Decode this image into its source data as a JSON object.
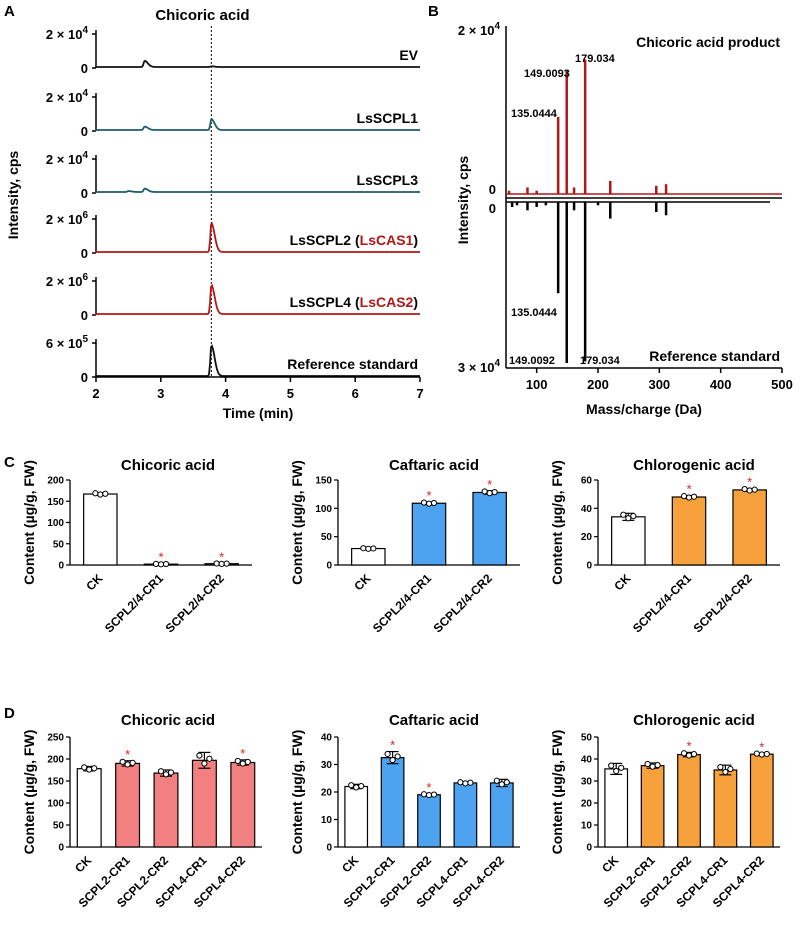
{
  "panels": {
    "A": "A",
    "B": "B",
    "C": "C",
    "D": "D"
  },
  "colors": {
    "red": "#b01818",
    "teal": "#1e5b6b",
    "black": "#111111",
    "white_bar": "#ffffff",
    "blue_bar": "#4da3ef",
    "orange_bar": "#f7a13c",
    "pink_bar": "#f28080"
  },
  "chart_data": [
    {
      "id": "A",
      "type": "line",
      "title": "Chicoric acid",
      "xlabel": "Time (min)",
      "ylabel": "Intensity, cps",
      "xlim": [
        2,
        7
      ],
      "xticks": [
        "2",
        "3",
        "4",
        "5",
        "6",
        "7"
      ],
      "marker_time": 3.78,
      "traces": [
        {
          "name": "EV",
          "ymax_label": "2 × 10",
          "ymax_exp": "4",
          "zero": "0",
          "color": "black",
          "peaks": [
            {
              "t": 2.75,
              "h": 0.18
            },
            {
              "t": 3.78,
              "h": 0.02
            }
          ]
        },
        {
          "name": "LsSCPL1",
          "ymax_label": "2 × 10",
          "ymax_exp": "4",
          "zero": "0",
          "color": "teal",
          "peaks": [
            {
              "t": 2.75,
              "h": 0.1
            },
            {
              "t": 3.78,
              "h": 0.32
            }
          ]
        },
        {
          "name": "LsSCPL3",
          "ymax_label": "2 × 10",
          "ymax_exp": "4",
          "zero": "0",
          "color": "teal",
          "peaks": [
            {
              "t": 2.75,
              "h": 0.1
            },
            {
              "t": 2.5,
              "h": 0.03
            }
          ]
        },
        {
          "name": "LsSCPL2 (",
          "name_red": "LsCAS1",
          "name_end": ")",
          "ymax_label": "2 × 10",
          "ymax_exp": "6",
          "zero": "0",
          "color": "red",
          "peaks": [
            {
              "t": 3.78,
              "h": 0.85
            }
          ]
        },
        {
          "name": "LsSCPL4 (",
          "name_red": "LsCAS2",
          "name_end": ")",
          "ymax_label": "2 × 10",
          "ymax_exp": "6",
          "zero": "0",
          "color": "red",
          "peaks": [
            {
              "t": 3.78,
              "h": 0.85
            }
          ]
        },
        {
          "name": "Reference standard",
          "ymax_label": "6 × 10",
          "ymax_exp": "5",
          "zero": "0",
          "color": "black",
          "peaks": [
            {
              "t": 3.78,
              "h": 0.9
            }
          ]
        }
      ]
    },
    {
      "id": "B",
      "type": "bar",
      "xlabel": "Mass/charge (Da)",
      "ylabel": "Intensity, cps",
      "xlim": [
        50,
        500
      ],
      "xticks": [
        "100",
        "200",
        "300",
        "400",
        "500"
      ],
      "top_label": "Chicoric acid product",
      "bottom_label": "Reference standard",
      "top_max": "2 × 10",
      "top_max_exp": "4",
      "top_zero": "0",
      "bottom_zero": "0",
      "bottom_max": "3 × 10",
      "bottom_max_exp": "4",
      "top_peaks": [
        [
          55,
          0.02
        ],
        [
          85,
          0.04
        ],
        [
          100,
          0.02
        ],
        [
          135.0444,
          0.47
        ],
        [
          149.0093,
          0.75
        ],
        [
          161,
          0.04
        ],
        [
          179.034,
          0.82
        ],
        [
          220,
          0.08
        ],
        [
          295,
          0.05
        ],
        [
          311,
          0.06
        ]
      ],
      "bottom_peaks": [
        [
          60,
          0.03
        ],
        [
          68,
          0.02
        ],
        [
          85,
          0.05
        ],
        [
          100,
          0.03
        ],
        [
          115,
          0.02
        ],
        [
          135.0444,
          0.55
        ],
        [
          149.0092,
          0.97
        ],
        [
          161,
          0.05
        ],
        [
          179.034,
          0.96
        ],
        [
          200,
          0.02
        ],
        [
          220,
          0.1
        ],
        [
          295,
          0.06
        ],
        [
          311,
          0.08
        ]
      ],
      "labels_top": [
        "149.0093",
        "179.034",
        "135.0444"
      ],
      "labels_bottom": [
        "135.0444",
        "149.0092",
        "179.034"
      ]
    },
    {
      "id": "C1",
      "type": "bar",
      "title": "Chicoric acid",
      "ylabel": "Content (µg/g, FW)",
      "ylim": [
        0,
        200
      ],
      "yticks": [
        "0",
        "50",
        "100",
        "150",
        "200"
      ],
      "categories": [
        "CK",
        "SCPL2/4-CR1",
        "SCPL2/4-CR2"
      ],
      "values": [
        167,
        2,
        3
      ],
      "err": [
        3,
        1,
        1
      ],
      "colors": [
        "white_bar",
        "blue_bar",
        "blue_bar"
      ],
      "star": [
        false,
        true,
        true
      ]
    },
    {
      "id": "C2",
      "type": "bar",
      "title": "Caftaric acid",
      "ylabel": "Content (µg/g, FW)",
      "ylim": [
        0,
        150
      ],
      "yticks": [
        "0",
        "50",
        "100",
        "150"
      ],
      "categories": [
        "CK",
        "SCPL2/4-CR1",
        "SCPL2/4-CR2"
      ],
      "values": [
        29,
        109,
        128
      ],
      "err": [
        1,
        2,
        3
      ],
      "colors": [
        "white_bar",
        "blue_bar",
        "blue_bar"
      ],
      "star": [
        false,
        true,
        true
      ]
    },
    {
      "id": "C3",
      "type": "bar",
      "title": "Chlorogenic acid",
      "ylabel": "Content (µg/g, FW)",
      "ylim": [
        0,
        60
      ],
      "yticks": [
        "0",
        "20",
        "40",
        "60"
      ],
      "categories": [
        "CK",
        "SCPL2/4-CR1",
        "SCPL2/4-CR2"
      ],
      "values": [
        34,
        48,
        53
      ],
      "err": [
        2.5,
        1,
        1
      ],
      "colors": [
        "white_bar",
        "orange_bar",
        "orange_bar"
      ],
      "star": [
        false,
        true,
        true
      ]
    },
    {
      "id": "D1",
      "type": "bar",
      "title": "Chicoric acid",
      "ylabel": "Content (µg/g, FW)",
      "ylim": [
        0,
        250
      ],
      "yticks": [
        "0",
        "50",
        "100",
        "150",
        "200",
        "250"
      ],
      "categories": [
        "CK",
        "SCPL2-CR1",
        "SCPL2-CR2",
        "SCPL4-CR1",
        "SCPL4-CR2"
      ],
      "values": [
        178,
        190,
        168,
        197,
        192
      ],
      "err": [
        5,
        6,
        7,
        18,
        6
      ],
      "colors": [
        "white_bar",
        "pink_bar",
        "pink_bar",
        "pink_bar",
        "pink_bar"
      ],
      "star": [
        false,
        true,
        false,
        false,
        true
      ]
    },
    {
      "id": "D2",
      "type": "bar",
      "title": "Caftaric acid",
      "ylabel": "Content (µg/g, FW)",
      "ylim": [
        0,
        40
      ],
      "yticks": [
        "0",
        "10",
        "20",
        "30",
        "40"
      ],
      "categories": [
        "CK",
        "SCPL2-CR1",
        "SCPL2-CR2",
        "SCPL4-CR1",
        "SCPL4-CR2"
      ],
      "values": [
        22,
        32.5,
        19,
        23.3,
        23.3
      ],
      "err": [
        0.8,
        2.2,
        0.3,
        0.4,
        1.3
      ],
      "colors": [
        "white_bar",
        "blue_bar",
        "blue_bar",
        "blue_bar",
        "blue_bar"
      ],
      "star": [
        false,
        true,
        true,
        false,
        false
      ]
    },
    {
      "id": "D3",
      "type": "bar",
      "title": "Chlorogenic acid",
      "ylabel": "Content (µg/g, FW)",
      "ylim": [
        0,
        50
      ],
      "yticks": [
        "0",
        "10",
        "20",
        "30",
        "40",
        "50"
      ],
      "categories": [
        "CK",
        "SCPL2-CR1",
        "SCPL2-CR2",
        "SCPL4-CR1",
        "SCPL4-CR2"
      ],
      "values": [
        35.5,
        37,
        42,
        35,
        42.2
      ],
      "err": [
        2.5,
        1.2,
        1,
        2.2,
        0.4
      ],
      "colors": [
        "white_bar",
        "orange_bar",
        "orange_bar",
        "orange_bar",
        "orange_bar"
      ],
      "star": [
        false,
        false,
        true,
        false,
        true
      ]
    }
  ]
}
